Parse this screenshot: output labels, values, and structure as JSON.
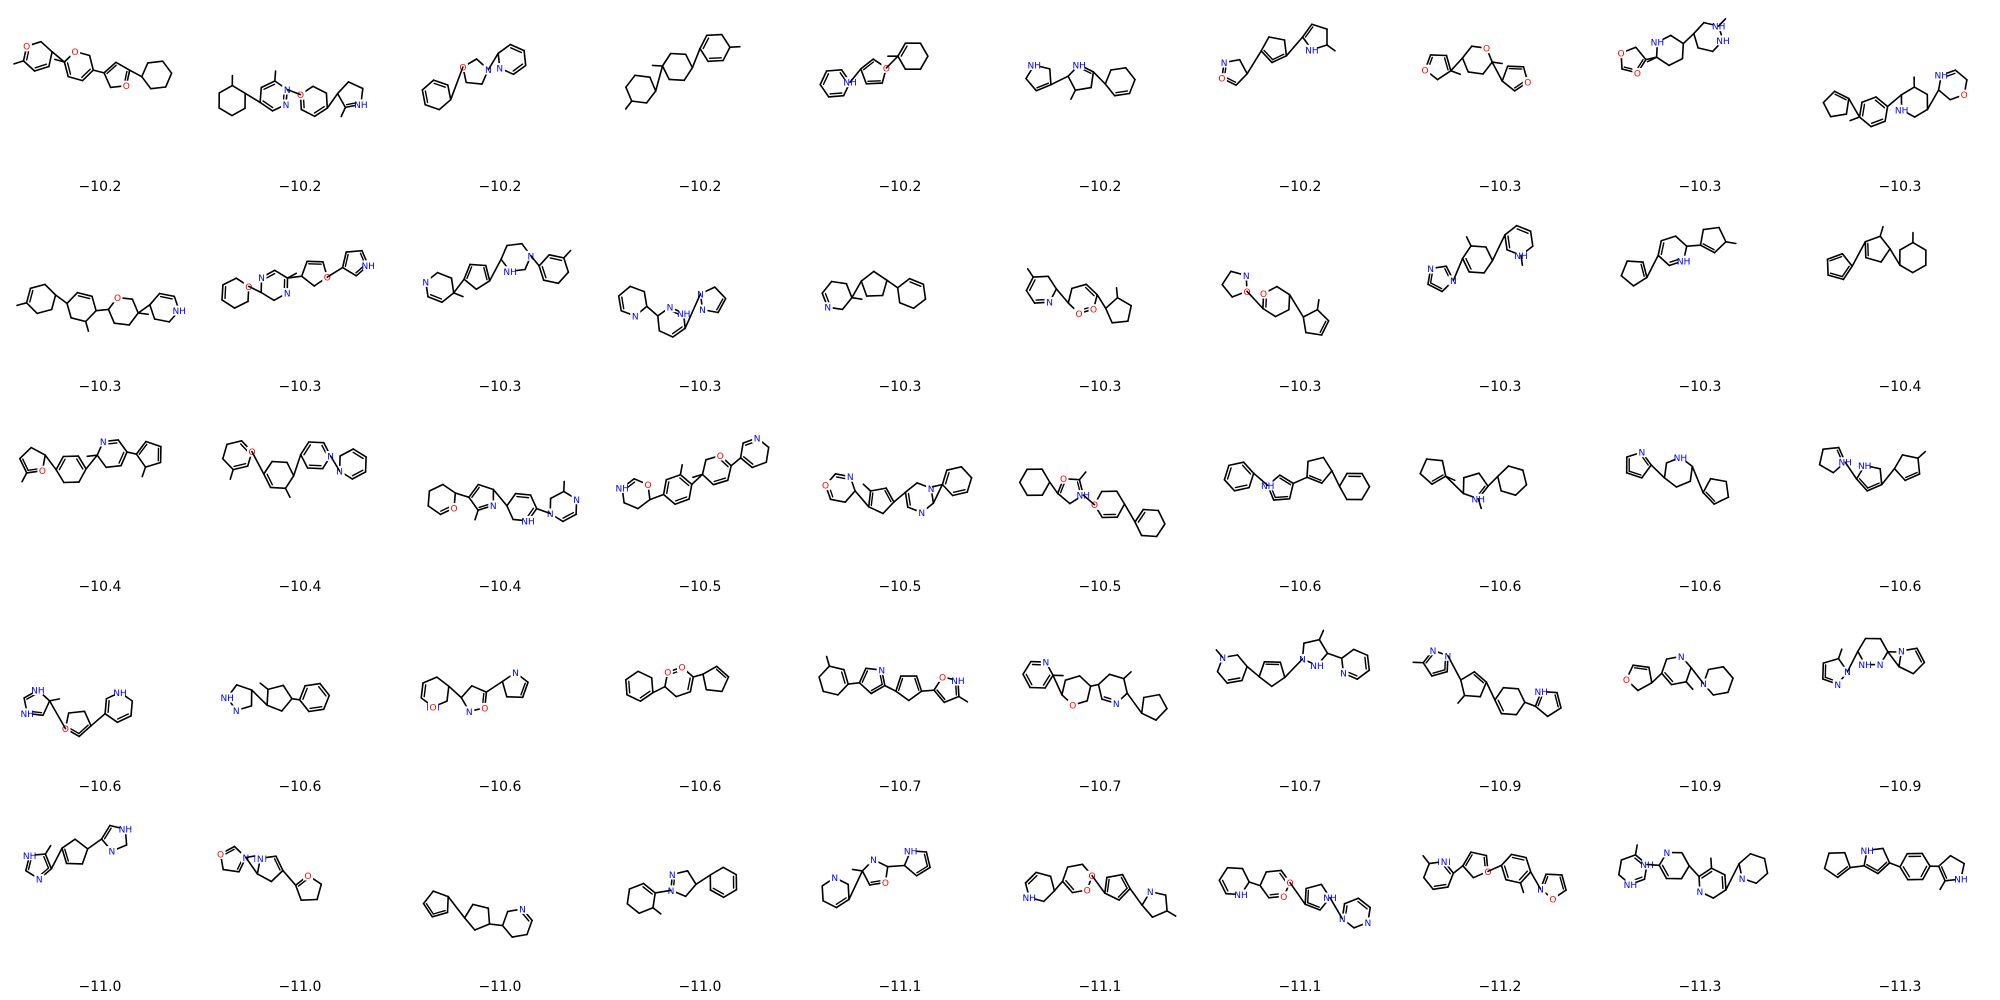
{
  "colors": {
    "carbon_bond": "#000000",
    "nitrogen": "#0000ff",
    "oxygen": "#ff0000",
    "background": "#ffffff"
  },
  "grid": {
    "rows": 5,
    "columns": 10
  },
  "atom_labels": {
    "nitrogen": "N",
    "nitrogen_h": "NH",
    "h_nitrogen": "HN",
    "oxygen": "O"
  },
  "molecules": [
    {
      "score": "−10.2"
    },
    {
      "score": "−10.2"
    },
    {
      "score": "−10.2"
    },
    {
      "score": "−10.2"
    },
    {
      "score": "−10.2"
    },
    {
      "score": "−10.2"
    },
    {
      "score": "−10.2"
    },
    {
      "score": "−10.3"
    },
    {
      "score": "−10.3"
    },
    {
      "score": "−10.3"
    },
    {
      "score": "−10.3"
    },
    {
      "score": "−10.3"
    },
    {
      "score": "−10.3"
    },
    {
      "score": "−10.3"
    },
    {
      "score": "−10.3"
    },
    {
      "score": "−10.3"
    },
    {
      "score": "−10.3"
    },
    {
      "score": "−10.3"
    },
    {
      "score": "−10.3"
    },
    {
      "score": "−10.4"
    },
    {
      "score": "−10.4"
    },
    {
      "score": "−10.4"
    },
    {
      "score": "−10.4"
    },
    {
      "score": "−10.5"
    },
    {
      "score": "−10.5"
    },
    {
      "score": "−10.5"
    },
    {
      "score": "−10.6"
    },
    {
      "score": "−10.6"
    },
    {
      "score": "−10.6"
    },
    {
      "score": "−10.6"
    },
    {
      "score": "−10.6"
    },
    {
      "score": "−10.6"
    },
    {
      "score": "−10.6"
    },
    {
      "score": "−10.6"
    },
    {
      "score": "−10.7"
    },
    {
      "score": "−10.7"
    },
    {
      "score": "−10.7"
    },
    {
      "score": "−10.9"
    },
    {
      "score": "−10.9"
    },
    {
      "score": "−10.9"
    },
    {
      "score": "−11.0"
    },
    {
      "score": "−11.0"
    },
    {
      "score": "−11.0"
    },
    {
      "score": "−11.0"
    },
    {
      "score": "−11.1"
    },
    {
      "score": "−11.1"
    },
    {
      "score": "−11.1"
    },
    {
      "score": "−11.2"
    },
    {
      "score": "−11.3"
    },
    {
      "score": "−11.3"
    }
  ]
}
